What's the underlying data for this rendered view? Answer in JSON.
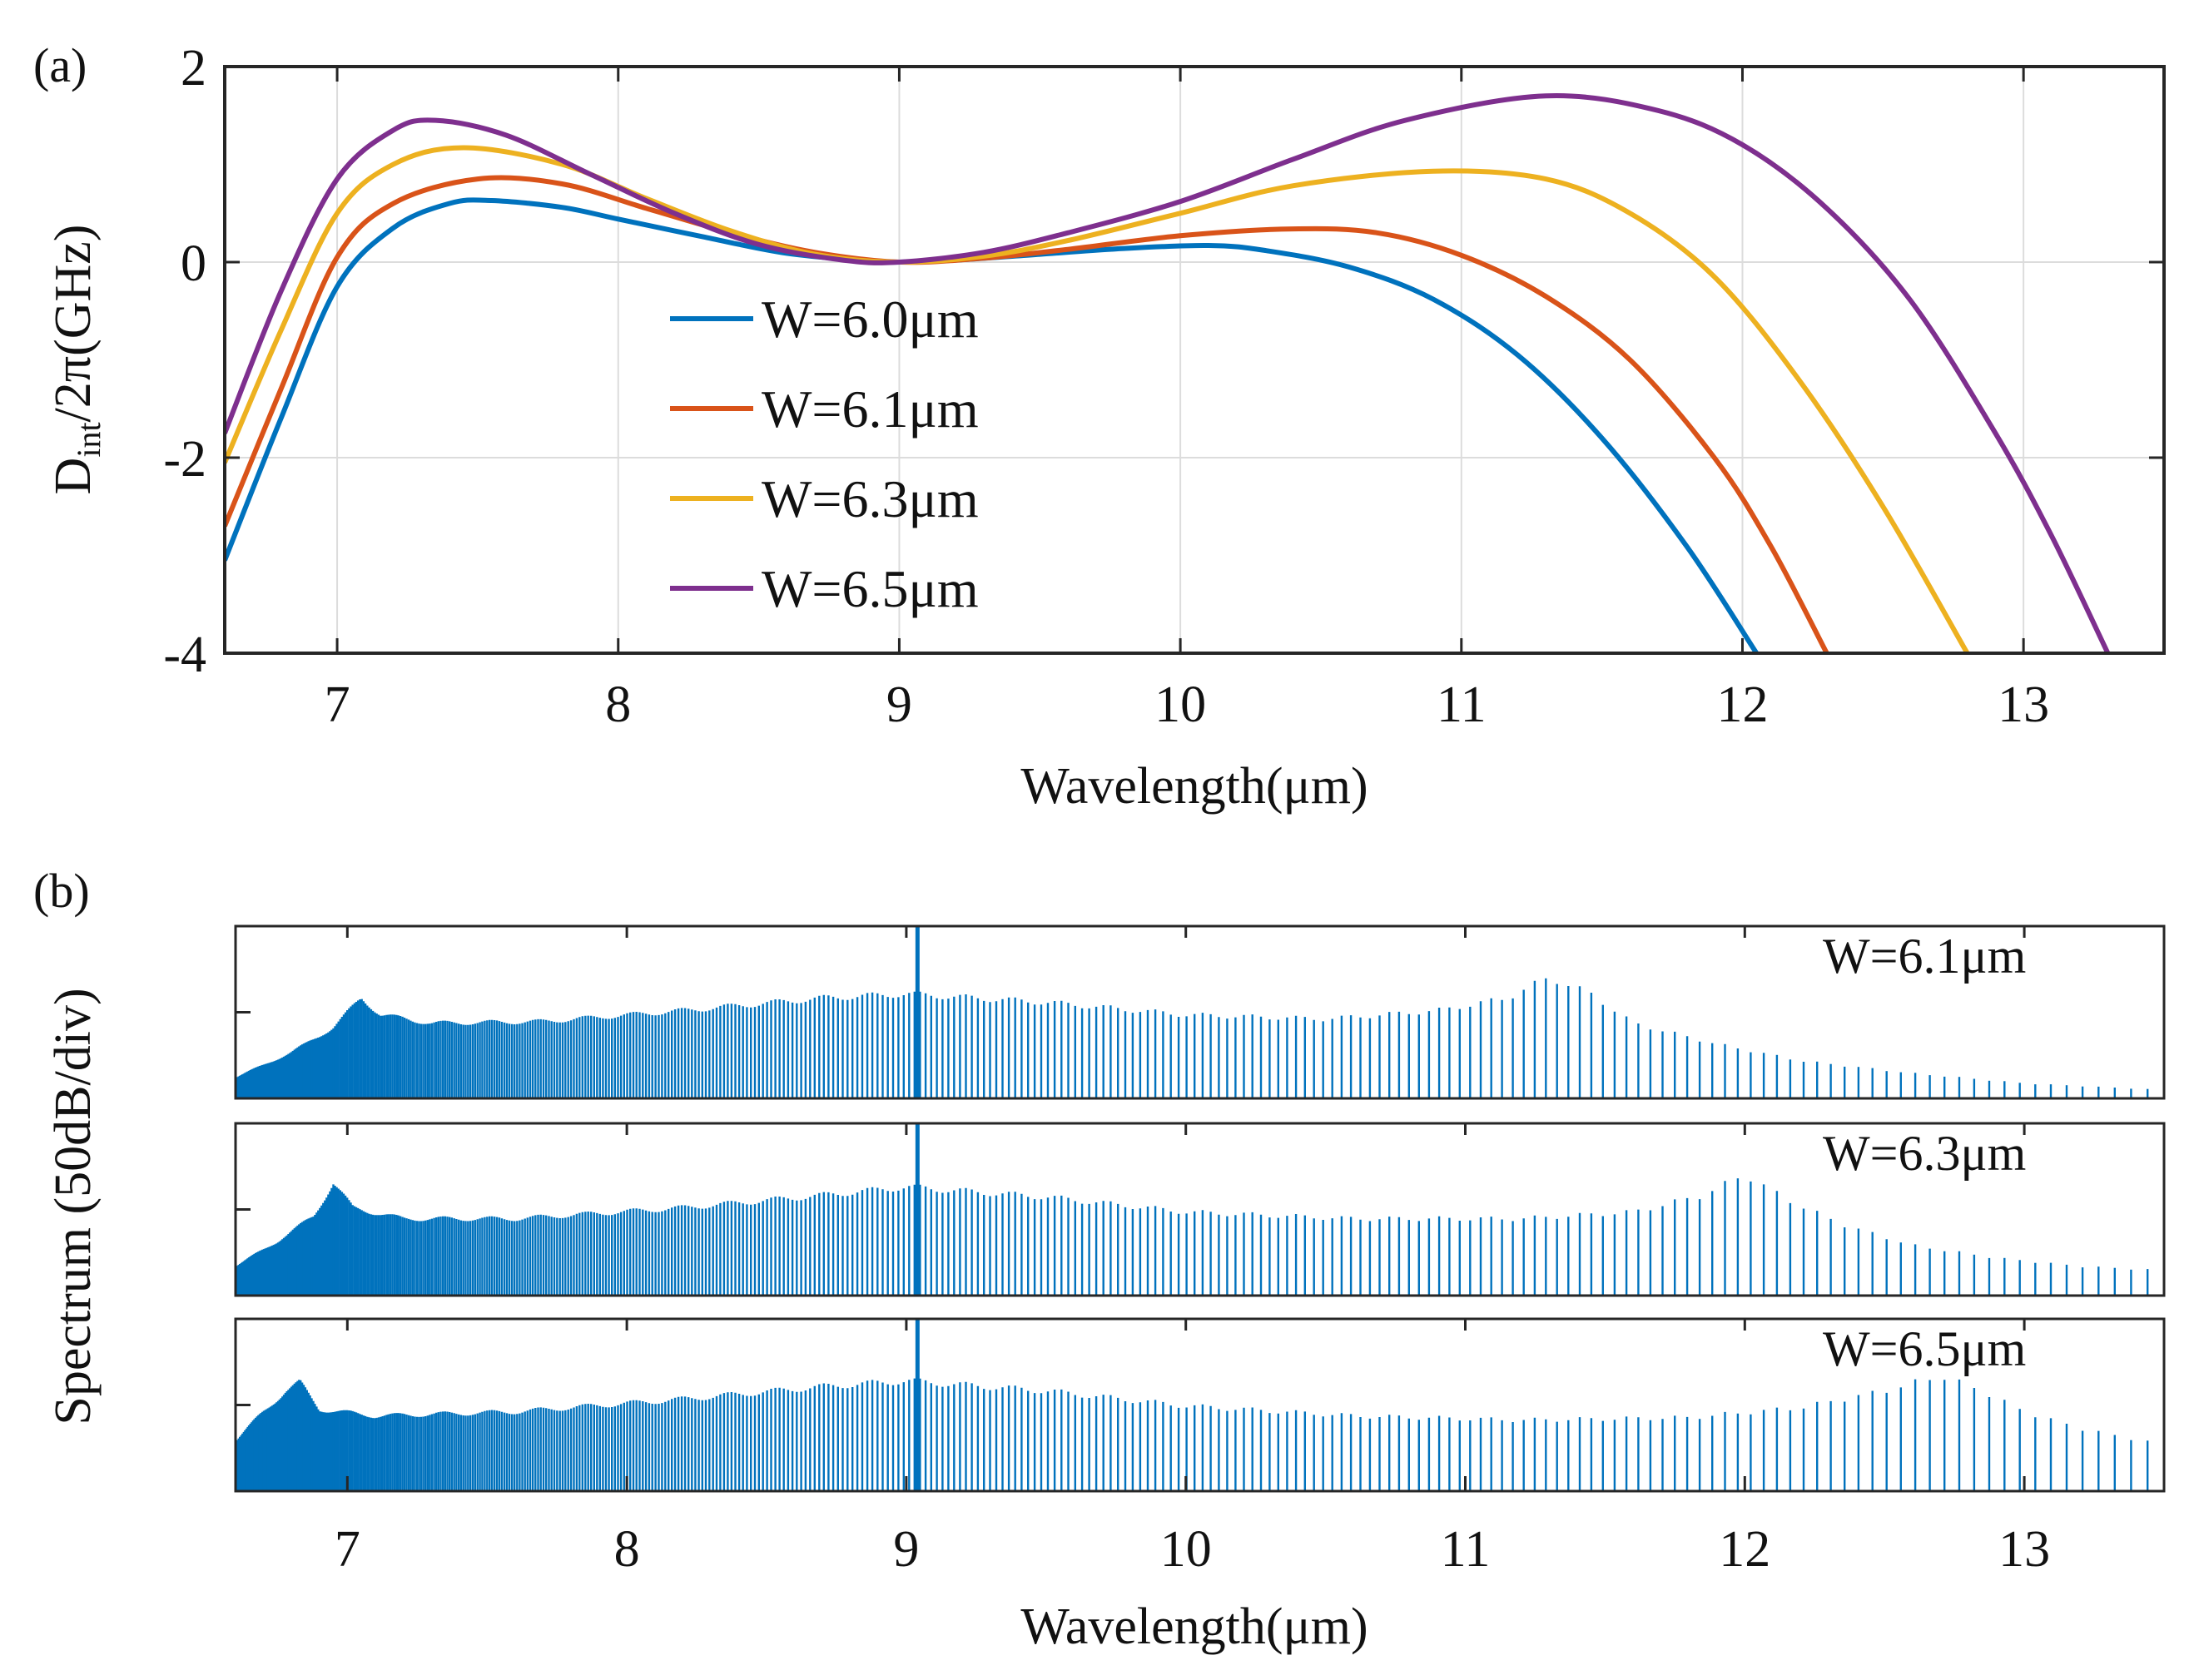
{
  "figure": {
    "panel_a_label": "(a)",
    "panel_b_label": "(b)"
  },
  "chart_data": [
    {
      "type": "line",
      "panel": "a",
      "xlabel": "Wavelength(μm)",
      "ylabel_main": "D",
      "ylabel_sub": "int",
      "ylabel_rest": "/2π(GHz)",
      "xlim": [
        6.6,
        13.5
      ],
      "ylim": [
        -4,
        2
      ],
      "xticks": [
        7,
        8,
        9,
        10,
        11,
        12,
        13
      ],
      "yticks": [
        -4,
        -2,
        0,
        2
      ],
      "ytick_labels": [
        "-4",
        "-2",
        "0",
        "2"
      ],
      "grid": true,
      "legend_position": "center",
      "series": [
        {
          "name": "W=6.0μm",
          "legend_label": "W=6.0μm",
          "color": "#0072BD",
          "x": [
            6.6,
            6.8,
            7.0,
            7.2,
            7.4,
            7.55,
            7.8,
            8.0,
            8.3,
            8.6,
            8.9,
            9.0,
            9.2,
            9.5,
            9.8,
            10.1,
            10.3,
            10.6,
            10.9,
            11.2,
            11.5,
            11.8,
            12.05
          ],
          "y": [
            -3.05,
            -1.6,
            -0.25,
            0.35,
            0.6,
            0.63,
            0.56,
            0.44,
            0.26,
            0.09,
            0.01,
            0.0,
            0.02,
            0.08,
            0.14,
            0.17,
            0.12,
            -0.05,
            -0.38,
            -0.95,
            -1.8,
            -2.9,
            -4.0
          ]
        },
        {
          "name": "W=6.1μm",
          "legend_label": "W=6.1μm",
          "color": "#D95319",
          "x": [
            6.6,
            6.8,
            7.0,
            7.2,
            7.5,
            7.8,
            8.1,
            8.4,
            8.7,
            9.0,
            9.3,
            9.6,
            10.0,
            10.4,
            10.7,
            11.0,
            11.3,
            11.6,
            11.9,
            12.1,
            12.3
          ],
          "y": [
            -2.7,
            -1.3,
            0.05,
            0.6,
            0.85,
            0.8,
            0.55,
            0.3,
            0.1,
            0.0,
            0.04,
            0.13,
            0.27,
            0.34,
            0.3,
            0.07,
            -0.35,
            -1.0,
            -2.0,
            -2.9,
            -4.0
          ]
        },
        {
          "name": "W=6.3μm",
          "legend_label": "W=6.3μm",
          "color": "#EDB120",
          "x": [
            6.6,
            6.8,
            7.0,
            7.2,
            7.45,
            7.8,
            8.1,
            8.4,
            8.7,
            9.0,
            9.3,
            9.6,
            10.0,
            10.4,
            10.9,
            11.3,
            11.6,
            11.9,
            12.2,
            12.5,
            12.8
          ],
          "y": [
            -2.05,
            -0.7,
            0.5,
            1.0,
            1.17,
            1.0,
            0.65,
            0.32,
            0.08,
            0.0,
            0.06,
            0.22,
            0.5,
            0.78,
            0.93,
            0.85,
            0.5,
            -0.15,
            -1.2,
            -2.5,
            -4.0
          ]
        },
        {
          "name": "W=6.5μm",
          "legend_label": "W=6.5μm",
          "color": "#7E2F8E",
          "x": [
            6.6,
            6.8,
            7.0,
            7.2,
            7.35,
            7.6,
            7.9,
            8.2,
            8.5,
            8.8,
            9.0,
            9.3,
            9.6,
            10.0,
            10.4,
            10.8,
            11.3,
            11.7,
            12.0,
            12.3,
            12.6,
            12.9,
            13.1,
            13.3
          ],
          "y": [
            -1.75,
            -0.3,
            0.85,
            1.35,
            1.45,
            1.3,
            0.9,
            0.5,
            0.18,
            0.02,
            0.0,
            0.1,
            0.3,
            0.62,
            1.05,
            1.45,
            1.7,
            1.55,
            1.2,
            0.55,
            -0.4,
            -1.75,
            -2.8,
            -4.0
          ]
        }
      ]
    },
    {
      "type": "bar",
      "panel": "b",
      "subtype": "spectral-comb",
      "xlabel": "Wavelength(μm)",
      "ylabel": "Spectrum (50dB/div)",
      "xlim": [
        6.6,
        13.5
      ],
      "xticks": [
        7,
        8,
        9,
        10,
        11,
        12,
        13
      ],
      "ylim_div": [
        0,
        2
      ],
      "ytick_divs": [
        1
      ],
      "color": "#0072BD",
      "pump_wavelength": 9.04,
      "pump_level_div": 2.0,
      "subplots": [
        {
          "label": "W=6.1μm",
          "title": "W=6.1μm",
          "envelope_x": [
            6.6,
            6.8,
            6.95,
            7.05,
            7.12,
            7.3,
            7.7,
            8.2,
            8.7,
            9.0,
            9.5,
            10.0,
            10.5,
            10.9,
            11.15,
            11.3,
            11.45,
            11.6,
            11.9,
            12.2,
            12.6,
            13.0,
            13.5
          ],
          "envelope_y": [
            0.25,
            0.55,
            0.85,
            1.2,
            1.0,
            0.9,
            0.92,
            1.05,
            1.2,
            1.25,
            1.15,
            1.0,
            0.95,
            1.05,
            1.2,
            1.45,
            1.25,
            0.9,
            0.65,
            0.45,
            0.3,
            0.18,
            0.1
          ]
        },
        {
          "label": "W=6.3μm",
          "title": "W=6.3μm",
          "envelope_x": [
            6.6,
            6.75,
            6.88,
            6.95,
            7.02,
            7.2,
            7.6,
            8.2,
            8.7,
            9.0,
            9.5,
            10.0,
            10.6,
            11.2,
            11.6,
            11.85,
            12.0,
            12.15,
            12.35,
            12.6,
            12.9,
            13.2,
            13.5
          ],
          "envelope_y": [
            0.35,
            0.65,
            0.95,
            1.35,
            1.05,
            0.92,
            0.92,
            1.05,
            1.2,
            1.3,
            1.18,
            1.0,
            0.92,
            0.92,
            1.0,
            1.2,
            1.45,
            1.15,
            0.85,
            0.6,
            0.45,
            0.35,
            0.3
          ]
        },
        {
          "label": "W=6.5μm",
          "title": "W=6.5μm",
          "envelope_x": [
            6.6,
            6.7,
            6.78,
            6.83,
            6.9,
            7.1,
            7.6,
            8.2,
            8.7,
            9.0,
            9.5,
            10.0,
            10.6,
            11.2,
            11.8,
            12.2,
            12.5,
            12.7,
            12.85,
            13.0,
            13.2,
            13.5
          ],
          "envelope_y": [
            0.6,
            0.95,
            1.2,
            1.3,
            0.98,
            0.9,
            0.95,
            1.1,
            1.25,
            1.32,
            1.2,
            1.02,
            0.9,
            0.85,
            0.88,
            1.0,
            1.2,
            1.38,
            1.2,
            0.95,
            0.75,
            0.55
          ]
        }
      ]
    }
  ]
}
